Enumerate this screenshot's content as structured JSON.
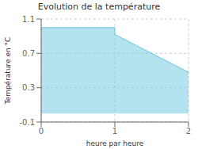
{
  "chart_data": {
    "type": "area",
    "title": "Evolution de la température",
    "xlabel": "heure par heure",
    "ylabel": "Température en °C",
    "x": [
      0,
      1,
      1,
      2
    ],
    "values": [
      1.0,
      1.0,
      0.92,
      0.48
    ],
    "color": "#6ac5df",
    "xlim": [
      0,
      2
    ],
    "ylim": [
      -0.1,
      1.1
    ],
    "xticks": [
      0,
      1,
      2
    ],
    "yticks": [
      -0.1,
      0.3,
      0.7,
      1.1
    ],
    "grid": true
  }
}
